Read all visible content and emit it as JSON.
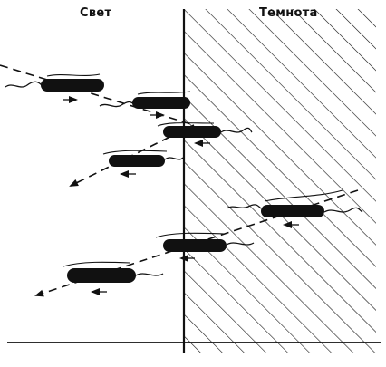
{
  "labels": {
    "light": "Свет",
    "dark": "Темнота"
  },
  "colors": {
    "ink": "#111111",
    "background": "#ffffff"
  }
}
